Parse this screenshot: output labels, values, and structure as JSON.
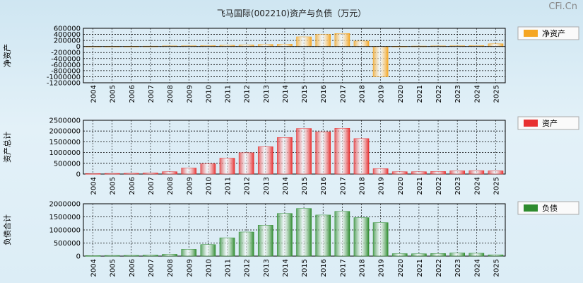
{
  "title": "飞马国际(002210)资产与负债（万元）",
  "watermark": "CFi.Cn",
  "chart_data": [
    {
      "type": "bar",
      "ylabel": "净资产",
      "legend": "净资产",
      "color": "#f5a623",
      "ylim": [
        -1200000,
        600000
      ],
      "yticks": [
        600000,
        400000,
        200000,
        0,
        -200000,
        -400000,
        -600000,
        -800000,
        -1000000,
        -1200000
      ],
      "categories": [
        "2004",
        "2005",
        "2006",
        "2007",
        "2008",
        "2009",
        "2010",
        "2011",
        "2012",
        "2013",
        "2014",
        "2015",
        "2016",
        "2017",
        "2018",
        "2019",
        "2020",
        "2021",
        "2022",
        "2023",
        "2024",
        "2025"
      ],
      "values": [
        5000,
        6000,
        9000,
        12000,
        20000,
        25000,
        30000,
        40000,
        50000,
        70000,
        80000,
        320000,
        400000,
        430000,
        180000,
        -1000000,
        10000,
        15000,
        20000,
        25000,
        30000,
        90000
      ]
    },
    {
      "type": "bar",
      "ylabel": "资产总计",
      "legend": "资产",
      "color": "#e83030",
      "ylim": [
        0,
        2500000
      ],
      "yticks": [
        2500000,
        2000000,
        1500000,
        1000000,
        500000,
        0
      ],
      "categories": [
        "2004",
        "2005",
        "2006",
        "2007",
        "2008",
        "2009",
        "2010",
        "2011",
        "2012",
        "2013",
        "2014",
        "2015",
        "2016",
        "2017",
        "2018",
        "2019",
        "2020",
        "2021",
        "2022",
        "2023",
        "2024",
        "2025"
      ],
      "values": [
        25000,
        30000,
        35000,
        50000,
        110000,
        280000,
        480000,
        740000,
        990000,
        1270000,
        1700000,
        2120000,
        1960000,
        2130000,
        1650000,
        250000,
        110000,
        110000,
        120000,
        150000,
        160000,
        150000
      ]
    },
    {
      "type": "bar",
      "ylabel": "负债合计",
      "legend": "负债",
      "color": "#2e8b2e",
      "ylim": [
        0,
        2000000
      ],
      "yticks": [
        2000000,
        1500000,
        1000000,
        500000,
        0
      ],
      "categories": [
        "2004",
        "2005",
        "2006",
        "2007",
        "2008",
        "2009",
        "2010",
        "2011",
        "2012",
        "2013",
        "2014",
        "2015",
        "2016",
        "2017",
        "2018",
        "2019",
        "2020",
        "2021",
        "2022",
        "2023",
        "2024",
        "2025"
      ],
      "values": [
        20000,
        25000,
        28000,
        40000,
        70000,
        260000,
        440000,
        700000,
        920000,
        1180000,
        1630000,
        1820000,
        1570000,
        1710000,
        1470000,
        1280000,
        95000,
        90000,
        100000,
        120000,
        110000,
        50000
      ]
    }
  ]
}
